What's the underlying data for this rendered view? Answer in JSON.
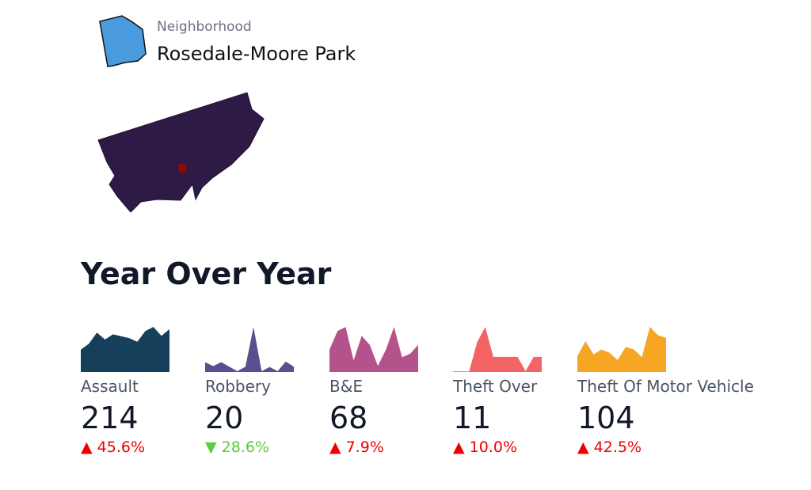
{
  "header": {
    "label": "Neighborhood",
    "name": "Rosedale-Moore Park",
    "shape_color": "#4a9ade"
  },
  "map": {
    "fill": "#2d1a45",
    "highlight": "#8b0a0a"
  },
  "section_title": "Year Over Year",
  "cards": [
    {
      "label": "Assault",
      "value": "214",
      "change": "45.6%",
      "direction": "up",
      "color": "#153f5a",
      "spark": [
        48,
        61,
        85,
        70,
        81,
        77,
        73,
        65,
        88,
        97,
        78,
        92
      ]
    },
    {
      "label": "Robbery",
      "value": "20",
      "change": "28.6%",
      "direction": "down",
      "color": "#57508e",
      "spark": [
        33,
        20,
        33,
        18,
        3,
        18,
        151,
        3,
        17,
        3,
        35,
        18
      ]
    },
    {
      "label": "B&E",
      "value": "68",
      "change": "7.9%",
      "direction": "up",
      "color": "#b4528c",
      "spark": [
        83,
        153,
        168,
        43,
        135,
        101,
        23,
        83,
        168,
        55,
        68,
        101
      ]
    },
    {
      "label": "Theft Over",
      "value": "11",
      "change": "10.0%",
      "direction": "up",
      "color": "#f26465",
      "spark": [
        2,
        2,
        2,
        85,
        128,
        43,
        43,
        43,
        43,
        3,
        43,
        43
      ]
    },
    {
      "label": "Theft Of Motor Vehicle",
      "value": "104",
      "change": "42.5%",
      "direction": "up",
      "color": "#f6a623",
      "spark": [
        48,
        93,
        53,
        68,
        58,
        36,
        76,
        68,
        45,
        136,
        111,
        103
      ]
    }
  ]
}
